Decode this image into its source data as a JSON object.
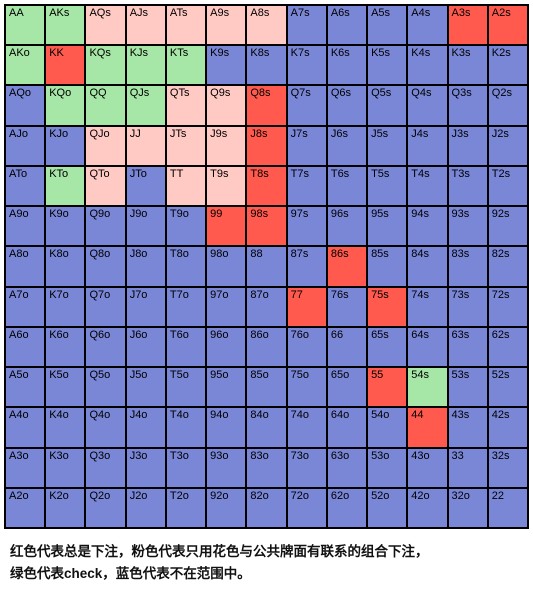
{
  "colors": {
    "red": "#ff5a4d",
    "pink": "#ffc9c4",
    "green": "#a6e6a6",
    "blue": "#7a86d6",
    "border": "#000000"
  },
  "ranks": [
    "A",
    "K",
    "Q",
    "J",
    "T",
    "9",
    "8",
    "7",
    "6",
    "5",
    "4",
    "3",
    "2"
  ],
  "grid": [
    [
      {
        "l": "AA",
        "c": "green"
      },
      {
        "l": "AKs",
        "c": "green"
      },
      {
        "l": "AQs",
        "c": "pink"
      },
      {
        "l": "AJs",
        "c": "pink"
      },
      {
        "l": "ATs",
        "c": "pink"
      },
      {
        "l": "A9s",
        "c": "pink"
      },
      {
        "l": "A8s",
        "c": "pink"
      },
      {
        "l": "A7s",
        "c": "blue"
      },
      {
        "l": "A6s",
        "c": "blue"
      },
      {
        "l": "A5s",
        "c": "blue"
      },
      {
        "l": "A4s",
        "c": "blue"
      },
      {
        "l": "A3s",
        "c": "red"
      },
      {
        "l": "A2s",
        "c": "red"
      }
    ],
    [
      {
        "l": "AKo",
        "c": "green"
      },
      {
        "l": "KK",
        "c": "red"
      },
      {
        "l": "KQs",
        "c": "green"
      },
      {
        "l": "KJs",
        "c": "green"
      },
      {
        "l": "KTs",
        "c": "green"
      },
      {
        "l": "K9s",
        "c": "blue"
      },
      {
        "l": "K8s",
        "c": "blue"
      },
      {
        "l": "K7s",
        "c": "blue"
      },
      {
        "l": "K6s",
        "c": "blue"
      },
      {
        "l": "K5s",
        "c": "blue"
      },
      {
        "l": "K4s",
        "c": "blue"
      },
      {
        "l": "K3s",
        "c": "blue"
      },
      {
        "l": "K2s",
        "c": "blue"
      }
    ],
    [
      {
        "l": "AQo",
        "c": "blue"
      },
      {
        "l": "KQo",
        "c": "green"
      },
      {
        "l": "QQ",
        "c": "green"
      },
      {
        "l": "QJs",
        "c": "green"
      },
      {
        "l": "QTs",
        "c": "pink"
      },
      {
        "l": "Q9s",
        "c": "pink"
      },
      {
        "l": "Q8s",
        "c": "red"
      },
      {
        "l": "Q7s",
        "c": "blue"
      },
      {
        "l": "Q6s",
        "c": "blue"
      },
      {
        "l": "Q5s",
        "c": "blue"
      },
      {
        "l": "Q4s",
        "c": "blue"
      },
      {
        "l": "Q3s",
        "c": "blue"
      },
      {
        "l": "Q2s",
        "c": "blue"
      }
    ],
    [
      {
        "l": "AJo",
        "c": "blue"
      },
      {
        "l": "KJo",
        "c": "blue"
      },
      {
        "l": "QJo",
        "c": "pink"
      },
      {
        "l": "JJ",
        "c": "pink"
      },
      {
        "l": "JTs",
        "c": "pink"
      },
      {
        "l": "J9s",
        "c": "pink"
      },
      {
        "l": "J8s",
        "c": "red"
      },
      {
        "l": "J7s",
        "c": "blue"
      },
      {
        "l": "J6s",
        "c": "blue"
      },
      {
        "l": "J5s",
        "c": "blue"
      },
      {
        "l": "J4s",
        "c": "blue"
      },
      {
        "l": "J3s",
        "c": "blue"
      },
      {
        "l": "J2s",
        "c": "blue"
      }
    ],
    [
      {
        "l": "ATo",
        "c": "blue"
      },
      {
        "l": "KTo",
        "c": "green"
      },
      {
        "l": "QTo",
        "c": "pink"
      },
      {
        "l": "JTo",
        "c": "blue"
      },
      {
        "l": "TT",
        "c": "pink"
      },
      {
        "l": "T9s",
        "c": "pink"
      },
      {
        "l": "T8s",
        "c": "red"
      },
      {
        "l": "T7s",
        "c": "blue"
      },
      {
        "l": "T6s",
        "c": "blue"
      },
      {
        "l": "T5s",
        "c": "blue"
      },
      {
        "l": "T4s",
        "c": "blue"
      },
      {
        "l": "T3s",
        "c": "blue"
      },
      {
        "l": "T2s",
        "c": "blue"
      }
    ],
    [
      {
        "l": "A9o",
        "c": "blue"
      },
      {
        "l": "K9o",
        "c": "blue"
      },
      {
        "l": "Q9o",
        "c": "blue"
      },
      {
        "l": "J9o",
        "c": "blue"
      },
      {
        "l": "T9o",
        "c": "blue"
      },
      {
        "l": "99",
        "c": "red"
      },
      {
        "l": "98s",
        "c": "red"
      },
      {
        "l": "97s",
        "c": "blue"
      },
      {
        "l": "96s",
        "c": "blue"
      },
      {
        "l": "95s",
        "c": "blue"
      },
      {
        "l": "94s",
        "c": "blue"
      },
      {
        "l": "93s",
        "c": "blue"
      },
      {
        "l": "92s",
        "c": "blue"
      }
    ],
    [
      {
        "l": "A8o",
        "c": "blue"
      },
      {
        "l": "K8o",
        "c": "blue"
      },
      {
        "l": "Q8o",
        "c": "blue"
      },
      {
        "l": "J8o",
        "c": "blue"
      },
      {
        "l": "T8o",
        "c": "blue"
      },
      {
        "l": "98o",
        "c": "blue"
      },
      {
        "l": "88",
        "c": "blue"
      },
      {
        "l": "87s",
        "c": "blue"
      },
      {
        "l": "86s",
        "c": "red"
      },
      {
        "l": "85s",
        "c": "blue"
      },
      {
        "l": "84s",
        "c": "blue"
      },
      {
        "l": "83s",
        "c": "blue"
      },
      {
        "l": "82s",
        "c": "blue"
      }
    ],
    [
      {
        "l": "A7o",
        "c": "blue"
      },
      {
        "l": "K7o",
        "c": "blue"
      },
      {
        "l": "Q7o",
        "c": "blue"
      },
      {
        "l": "J7o",
        "c": "blue"
      },
      {
        "l": "T7o",
        "c": "blue"
      },
      {
        "l": "97o",
        "c": "blue"
      },
      {
        "l": "87o",
        "c": "blue"
      },
      {
        "l": "77",
        "c": "red"
      },
      {
        "l": "76s",
        "c": "blue"
      },
      {
        "l": "75s",
        "c": "red"
      },
      {
        "l": "74s",
        "c": "blue"
      },
      {
        "l": "73s",
        "c": "blue"
      },
      {
        "l": "72s",
        "c": "blue"
      }
    ],
    [
      {
        "l": "A6o",
        "c": "blue"
      },
      {
        "l": "K6o",
        "c": "blue"
      },
      {
        "l": "Q6o",
        "c": "blue"
      },
      {
        "l": "J6o",
        "c": "blue"
      },
      {
        "l": "T6o",
        "c": "blue"
      },
      {
        "l": "96o",
        "c": "blue"
      },
      {
        "l": "86o",
        "c": "blue"
      },
      {
        "l": "76o",
        "c": "blue"
      },
      {
        "l": "66",
        "c": "blue"
      },
      {
        "l": "65s",
        "c": "blue"
      },
      {
        "l": "64s",
        "c": "blue"
      },
      {
        "l": "63s",
        "c": "blue"
      },
      {
        "l": "62s",
        "c": "blue"
      }
    ],
    [
      {
        "l": "A5o",
        "c": "blue"
      },
      {
        "l": "K5o",
        "c": "blue"
      },
      {
        "l": "Q5o",
        "c": "blue"
      },
      {
        "l": "J5o",
        "c": "blue"
      },
      {
        "l": "T5o",
        "c": "blue"
      },
      {
        "l": "95o",
        "c": "blue"
      },
      {
        "l": "85o",
        "c": "blue"
      },
      {
        "l": "75o",
        "c": "blue"
      },
      {
        "l": "65o",
        "c": "blue"
      },
      {
        "l": "55",
        "c": "red"
      },
      {
        "l": "54s",
        "c": "green"
      },
      {
        "l": "53s",
        "c": "blue"
      },
      {
        "l": "52s",
        "c": "blue"
      }
    ],
    [
      {
        "l": "A4o",
        "c": "blue"
      },
      {
        "l": "K4o",
        "c": "blue"
      },
      {
        "l": "Q4o",
        "c": "blue"
      },
      {
        "l": "J4o",
        "c": "blue"
      },
      {
        "l": "T4o",
        "c": "blue"
      },
      {
        "l": "94o",
        "c": "blue"
      },
      {
        "l": "84o",
        "c": "blue"
      },
      {
        "l": "74o",
        "c": "blue"
      },
      {
        "l": "64o",
        "c": "blue"
      },
      {
        "l": "54o",
        "c": "blue"
      },
      {
        "l": "44",
        "c": "red"
      },
      {
        "l": "43s",
        "c": "blue"
      },
      {
        "l": "42s",
        "c": "blue"
      }
    ],
    [
      {
        "l": "A3o",
        "c": "blue"
      },
      {
        "l": "K3o",
        "c": "blue"
      },
      {
        "l": "Q3o",
        "c": "blue"
      },
      {
        "l": "J3o",
        "c": "blue"
      },
      {
        "l": "T3o",
        "c": "blue"
      },
      {
        "l": "93o",
        "c": "blue"
      },
      {
        "l": "83o",
        "c": "blue"
      },
      {
        "l": "73o",
        "c": "blue"
      },
      {
        "l": "63o",
        "c": "blue"
      },
      {
        "l": "53o",
        "c": "blue"
      },
      {
        "l": "43o",
        "c": "blue"
      },
      {
        "l": "33",
        "c": "blue"
      },
      {
        "l": "32s",
        "c": "blue"
      }
    ],
    [
      {
        "l": "A2o",
        "c": "blue"
      },
      {
        "l": "K2o",
        "c": "blue"
      },
      {
        "l": "Q2o",
        "c": "blue"
      },
      {
        "l": "J2o",
        "c": "blue"
      },
      {
        "l": "T2o",
        "c": "blue"
      },
      {
        "l": "92o",
        "c": "blue"
      },
      {
        "l": "82o",
        "c": "blue"
      },
      {
        "l": "72o",
        "c": "blue"
      },
      {
        "l": "62o",
        "c": "blue"
      },
      {
        "l": "52o",
        "c": "blue"
      },
      {
        "l": "42o",
        "c": "blue"
      },
      {
        "l": "32o",
        "c": "blue"
      },
      {
        "l": "22",
        "c": "blue"
      }
    ]
  ],
  "legend": {
    "line1": "红色代表总是下注，粉色代表只用花色与公共牌面有联系的组合下注，",
    "line2": "绿色代表check，蓝色代表不在范围中。"
  }
}
